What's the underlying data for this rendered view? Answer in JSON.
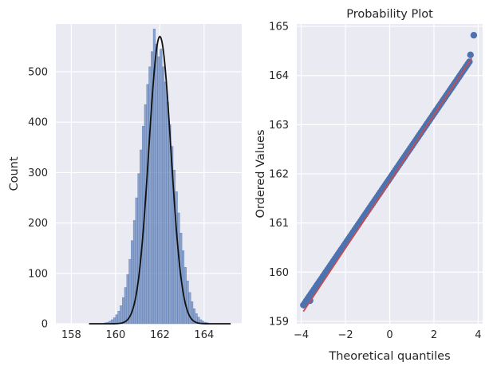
{
  "chart_data": [
    {
      "type": "bar",
      "subtype": "histogram-with-kde",
      "title": "",
      "xlabel": "",
      "ylabel": "Count",
      "xlim": [
        157.3,
        165.7
      ],
      "ylim": [
        0,
        595
      ],
      "xticks": [
        "158",
        "160",
        "162",
        "164"
      ],
      "yticks": [
        "0",
        "100",
        "200",
        "300",
        "400",
        "500"
      ],
      "grid": true,
      "bar_color": "#4C72B0",
      "kde_color": "#111111",
      "bins": {
        "start": 159.5,
        "width": 0.1,
        "counts": [
          2,
          3,
          5,
          8,
          12,
          18,
          25,
          36,
          52,
          72,
          98,
          128,
          165,
          205,
          250,
          298,
          345,
          392,
          435,
          475,
          510,
          540,
          585,
          555,
          530,
          545,
          510,
          480,
          440,
          395,
          352,
          305,
          262,
          220,
          180,
          145,
          112,
          85,
          62,
          44,
          30,
          20,
          13,
          8,
          5,
          3,
          2
        ]
      },
      "kde": {
        "peak_x": 162.0,
        "peak_y": 570,
        "x": [
          159.0,
          159.5,
          160.0,
          160.5,
          161.0,
          161.5,
          162.0,
          162.5,
          163.0,
          163.5,
          164.0,
          164.5,
          165.0
        ],
        "y": [
          0,
          5,
          25,
          108,
          285,
          490,
          570,
          490,
          285,
          108,
          25,
          5,
          0
        ]
      }
    },
    {
      "type": "scatter",
      "title": "Probability Plot",
      "xlabel": "Theoretical quantiles",
      "ylabel": "Ordered Values",
      "xlim": [
        -4.2,
        4.2
      ],
      "ylim": [
        158.95,
        165.05
      ],
      "xticks": [
        "−4",
        "−2",
        "0",
        "2",
        "4"
      ],
      "yticks": [
        "159",
        "160",
        "161",
        "162",
        "163",
        "164",
        "165"
      ],
      "grid": true,
      "point_color": "#4C72B0",
      "line_color": "#C44E52",
      "fit_line": {
        "x": [
          -3.9,
          3.7
        ],
        "y": [
          159.2,
          164.35
        ]
      },
      "points_range": {
        "x": [
          -3.9,
          3.6
        ],
        "y": [
          159.33,
          164.28
        ]
      },
      "outliers": [
        {
          "x": 3.8,
          "y": 164.82
        },
        {
          "x": 3.65,
          "y": 164.42
        },
        {
          "x": -3.6,
          "y": 159.42
        }
      ]
    }
  ]
}
